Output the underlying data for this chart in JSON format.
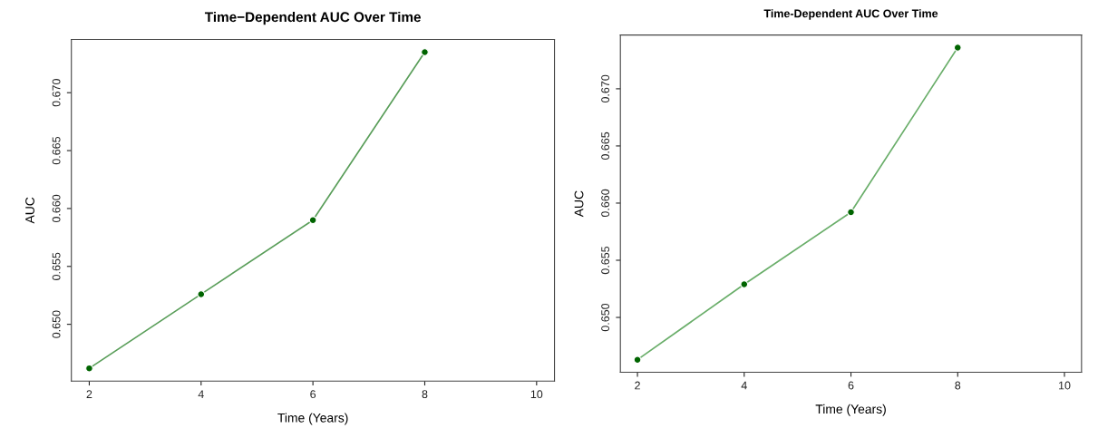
{
  "chart_data": [
    {
      "type": "line",
      "title": "Time−Dependent AUC Over Time",
      "xlabel": "Time (Years)",
      "ylabel": "AUC",
      "x": [
        2,
        4,
        6,
        8
      ],
      "series": [
        {
          "color": "#5a9e5a",
          "marker": "none",
          "values": [
            0.6462,
            0.6526,
            0.659,
            0.6735
          ]
        },
        {
          "type": "scatter",
          "color": "#006400",
          "marker": "circle",
          "values": [
            0.6462,
            0.6526,
            0.659,
            0.6735
          ]
        }
      ],
      "xlim": [
        1.68,
        10.32
      ],
      "ylim": [
        0.6451,
        0.6746
      ],
      "xticks": [
        2,
        4,
        6,
        8,
        10
      ],
      "yticks": [
        {
          "value": 0.65,
          "label": "0.650"
        },
        {
          "value": 0.655,
          "label": "0.655"
        },
        {
          "value": 0.66,
          "label": "0.660"
        },
        {
          "value": 0.665,
          "label": "0.665"
        },
        {
          "value": 0.67,
          "label": "0.670"
        }
      ],
      "grid": false
    },
    {
      "type": "line",
      "title": "Time-Dependent AUC Over Time",
      "xlabel": "Time (Years)",
      "ylabel": "AUC",
      "x": [
        2,
        4,
        6,
        8
      ],
      "series": [
        {
          "color": "#6aae6a",
          "marker": "none",
          "values": [
            0.6463,
            0.6529,
            0.6592,
            0.6736
          ]
        },
        {
          "type": "scatter",
          "color": "#006400",
          "marker": "circle",
          "values": [
            0.6463,
            0.6529,
            0.6592,
            0.6736
          ]
        }
      ],
      "xlim": [
        1.68,
        10.32
      ],
      "ylim": [
        0.6452,
        0.6747
      ],
      "xticks": [
        2,
        4,
        6,
        8,
        10
      ],
      "yticks": [
        {
          "value": 0.65,
          "label": "0.650"
        },
        {
          "value": 0.655,
          "label": "0.655"
        },
        {
          "value": 0.66,
          "label": "0.660"
        },
        {
          "value": 0.665,
          "label": "0.665"
        },
        {
          "value": 0.67,
          "label": "0.670"
        }
      ],
      "grid": false
    }
  ]
}
